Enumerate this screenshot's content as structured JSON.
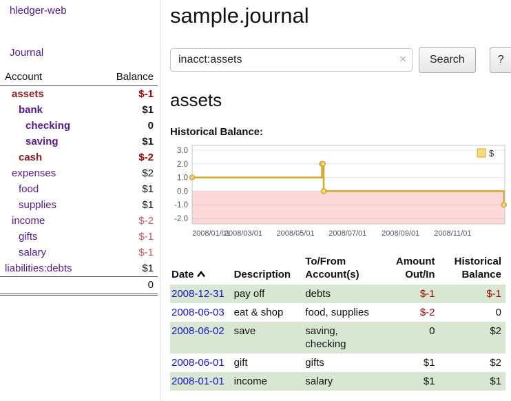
{
  "colors": {
    "link-purple": "#551a8b",
    "link-blue": "#1414cc",
    "neg-red": "#a40000",
    "neg-soft": "#c06060",
    "acct-maroon": "#871f1f",
    "row-green": "#d7e7d1",
    "chart-pink": "#ffd9d9",
    "chart-gold": "#d0a92f",
    "chart-gold-fill": "#f3dc7b"
  },
  "sidebar": {
    "app_title": "hledger-web",
    "journal_link": "Journal",
    "accounts": {
      "col_account": "Account",
      "col_balance": "Balance",
      "rows": [
        {
          "name": "assets",
          "balance": "$-1",
          "indent": 1,
          "bold": true,
          "name_color": "maroon",
          "balance_neg": true
        },
        {
          "name": "bank",
          "balance": "$1",
          "indent": 2,
          "bold": true
        },
        {
          "name": "checking",
          "balance": "0",
          "indent": 3,
          "bold": true
        },
        {
          "name": "saving",
          "balance": "$1",
          "indent": 3,
          "bold": true
        },
        {
          "name": "cash",
          "balance": "$-2",
          "indent": 2,
          "bold": true,
          "name_color": "maroon",
          "balance_neg": true
        },
        {
          "name": "expenses",
          "balance": "$2",
          "indent": 1
        },
        {
          "name": "food",
          "balance": "$1",
          "indent": 2
        },
        {
          "name": "supplies",
          "balance": "$1",
          "indent": 2
        },
        {
          "name": "income",
          "balance": "$-2",
          "indent": 1,
          "balance_soft_neg": true
        },
        {
          "name": "gifts",
          "balance": "$-1",
          "indent": 2,
          "balance_soft_neg": true
        },
        {
          "name": "salary",
          "balance": "$-1",
          "indent": 2,
          "balance_soft_neg": true
        },
        {
          "name": "liabilities:debts",
          "balance": "$1",
          "indent": 0
        }
      ],
      "total": "0"
    }
  },
  "main": {
    "title": "sample.journal",
    "search": {
      "value": "inacct:assets",
      "clear_icon": "×",
      "button_label": "Search",
      "help_label": "?"
    },
    "account_heading": "assets",
    "chart_label": "Historical Balance:"
  },
  "chart_data": {
    "type": "line",
    "step": true,
    "title": "Historical Balance",
    "series": [
      {
        "name": "$",
        "points": [
          {
            "date": "2008-01-01",
            "value": 1
          },
          {
            "date": "2008-06-01",
            "value": 2
          },
          {
            "date": "2008-06-02",
            "value": 2
          },
          {
            "date": "2008-06-03",
            "value": 0
          },
          {
            "date": "2008-12-31",
            "value": -1
          }
        ]
      }
    ],
    "x_range": [
      "2008-01-01",
      "2009-01-01"
    ],
    "ylim": [
      -2.4,
      3.35
    ],
    "y_ticks": [
      3.0,
      2.0,
      1.0,
      0.0,
      -1.0,
      -2.0
    ],
    "y_tick_labels": [
      "3.0",
      "2.0",
      "1.0",
      "0.0",
      "-1.0",
      "-2.0"
    ],
    "x_tick_dates": [
      "2008-01-01",
      "2008-03-01",
      "2008-05-01",
      "2008-07-01",
      "2008-09-01",
      "2008-11-01"
    ],
    "x_tick_labels": [
      "2008/01/01",
      "2008/03/01",
      "2008/05/01",
      "2008/07/01",
      "2008/09/01",
      "2008/11/01"
    ],
    "legend": {
      "label": "$",
      "position": "top-right"
    },
    "negative_region": true,
    "grid": true
  },
  "register": {
    "columns": [
      {
        "label": "Date",
        "align": "left",
        "sortable": true,
        "sort": "ascending"
      },
      {
        "label": "Description",
        "align": "left"
      },
      {
        "label": "To/From Account(s)",
        "align": "left"
      },
      {
        "label": "Amount Out/In",
        "align": "right"
      },
      {
        "label": "Historical Balance",
        "align": "right"
      }
    ],
    "rows": [
      {
        "date": "2008-12-31",
        "description": "pay off",
        "accounts": "debts",
        "amount": "$-1",
        "balance": "$-1"
      },
      {
        "date": "2008-06-03",
        "description": "eat & shop",
        "accounts": "food, supplies",
        "amount": "$-2",
        "balance": "0"
      },
      {
        "date": "2008-06-02",
        "description": "save",
        "accounts": "saving, checking",
        "amount": "0",
        "balance": "$2"
      },
      {
        "date": "2008-06-01",
        "description": "gift",
        "accounts": "gifts",
        "amount": "$1",
        "balance": "$2"
      },
      {
        "date": "2008-01-01",
        "description": "income",
        "accounts": "salary",
        "amount": "$1",
        "balance": "$1"
      }
    ]
  }
}
